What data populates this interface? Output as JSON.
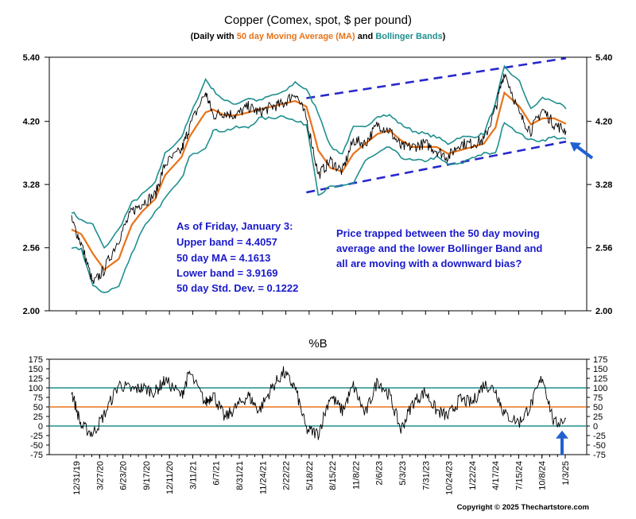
{
  "title": "Copper (Comex, spot, $ per pound)",
  "subtitle": {
    "prefix": "(Daily with ",
    "ma": "50 day Moving Average (MA)",
    "and": " and ",
    "bb": "Bollinger Bands",
    "suffix": ")"
  },
  "copyright": "Copyright © 2025 Thechartstore.com",
  "colors": {
    "price": "#000000",
    "ma": "#e8731a",
    "bands": "#1f8f8f",
    "channel": "#2828cc",
    "arrow": "#2060d0",
    "annotation": "#1a1acc",
    "ref_line_mid": "#e8731a",
    "ref_line_band": "#1f8f8f"
  },
  "chart_data": [
    {
      "type": "line",
      "name": "copper-price-panel",
      "ylim": [
        2.0,
        5.4
      ],
      "yticks": [
        "5.40",
        "4.20",
        "3.28",
        "2.56",
        "2.00"
      ],
      "ytick_values": [
        5.4,
        4.2,
        3.28,
        2.56,
        2.0
      ],
      "y_scale": "log",
      "x": [
        "2019-12-31",
        "2020-02-05",
        "2020-03-19",
        "2020-04-30",
        "2020-06-23",
        "2020-08-10",
        "2020-09-17",
        "2020-11-05",
        "2020-12-11",
        "2021-02-10",
        "2021-03-11",
        "2021-05-10",
        "2021-06-07",
        "2021-07-20",
        "2021-08-31",
        "2021-10-15",
        "2021-11-24",
        "2022-01-10",
        "2022-02-22",
        "2022-04-07",
        "2022-05-18",
        "2022-07-01",
        "2022-08-15",
        "2022-09-28",
        "2022-11-08",
        "2022-12-22",
        "2023-02-06",
        "2023-03-22",
        "2023-05-03",
        "2023-06-15",
        "2023-07-31",
        "2023-09-12",
        "2023-10-24",
        "2023-12-07",
        "2024-01-22",
        "2024-03-05",
        "2024-04-17",
        "2024-05-20",
        "2024-07-15",
        "2024-08-26",
        "2024-10-08",
        "2024-11-20",
        "2025-01-03"
      ],
      "series": [
        {
          "key": "price",
          "values": [
            2.85,
            2.6,
            2.22,
            2.35,
            2.65,
            2.95,
            3.05,
            3.15,
            3.55,
            3.75,
            4.1,
            4.7,
            4.3,
            4.35,
            4.3,
            4.45,
            4.35,
            4.45,
            4.5,
            4.7,
            4.25,
            3.4,
            3.6,
            3.45,
            3.9,
            3.85,
            4.15,
            4.05,
            3.8,
            3.8,
            3.85,
            3.75,
            3.65,
            3.85,
            3.85,
            3.9,
            4.4,
            5.1,
            4.3,
            4.05,
            4.4,
            4.15,
            4.05
          ]
        },
        {
          "key": "ma",
          "values": [
            2.75,
            2.7,
            2.5,
            2.35,
            2.45,
            2.8,
            2.95,
            3.1,
            3.4,
            3.65,
            3.95,
            4.35,
            4.4,
            4.3,
            4.3,
            4.35,
            4.4,
            4.45,
            4.5,
            4.55,
            4.45,
            3.75,
            3.5,
            3.45,
            3.7,
            3.85,
            4.0,
            4.05,
            3.9,
            3.8,
            3.8,
            3.8,
            3.7,
            3.75,
            3.8,
            3.85,
            4.1,
            4.7,
            4.45,
            4.15,
            4.25,
            4.25,
            4.16
          ]
        },
        {
          "key": "upper",
          "values": [
            2.95,
            2.85,
            2.8,
            2.55,
            2.75,
            3.05,
            3.15,
            3.3,
            3.7,
            3.95,
            4.25,
            4.95,
            4.75,
            4.55,
            4.5,
            4.6,
            4.55,
            4.65,
            4.7,
            4.9,
            4.75,
            4.35,
            3.8,
            3.7,
            4.1,
            4.1,
            4.3,
            4.3,
            4.15,
            4.05,
            4.0,
            3.95,
            3.85,
            3.95,
            3.95,
            4.0,
            4.5,
            5.2,
            4.9,
            4.4,
            4.6,
            4.55,
            4.41
          ]
        },
        {
          "key": "lower",
          "values": [
            2.55,
            2.55,
            2.2,
            2.15,
            2.2,
            2.5,
            2.75,
            2.95,
            3.1,
            3.35,
            3.65,
            3.8,
            4.05,
            4.05,
            4.1,
            4.1,
            4.25,
            4.25,
            4.3,
            4.2,
            4.15,
            3.15,
            3.25,
            3.25,
            3.3,
            3.6,
            3.7,
            3.8,
            3.65,
            3.6,
            3.6,
            3.65,
            3.55,
            3.55,
            3.65,
            3.7,
            3.7,
            4.2,
            4.0,
            3.9,
            3.9,
            3.95,
            3.92
          ]
        }
      ],
      "channel": {
        "upper": [
          [
            "2022-05-18",
            4.6
          ],
          [
            "2025-01-03",
            5.38
          ]
        ],
        "lower": [
          [
            "2022-05-18",
            3.18
          ],
          [
            "2025-01-03",
            3.88
          ]
        ]
      },
      "arrow_target": [
        "2025-01-03",
        3.92
      ]
    },
    {
      "type": "line",
      "name": "percent-b-panel",
      "title": "%B",
      "ylim": [
        -75,
        175
      ],
      "yticks": [
        "175",
        "150",
        "125",
        "100",
        "75",
        "50",
        "25",
        "0",
        "-25",
        "-50",
        "-75"
      ],
      "ytick_values": [
        175,
        150,
        125,
        100,
        75,
        50,
        25,
        0,
        -25,
        -50,
        -75
      ],
      "ref_lines": [
        100,
        50,
        0
      ],
      "x": [
        "2019-12-31",
        "2020-02-05",
        "2020-03-19",
        "2020-04-30",
        "2020-06-23",
        "2020-08-10",
        "2020-09-17",
        "2020-11-05",
        "2020-12-11",
        "2021-02-10",
        "2021-03-11",
        "2021-05-10",
        "2021-06-07",
        "2021-07-20",
        "2021-08-31",
        "2021-10-15",
        "2021-11-24",
        "2022-01-10",
        "2022-02-22",
        "2022-04-07",
        "2022-05-18",
        "2022-07-01",
        "2022-08-15",
        "2022-09-28",
        "2022-11-08",
        "2022-12-22",
        "2023-02-06",
        "2023-03-22",
        "2023-05-03",
        "2023-06-15",
        "2023-07-31",
        "2023-09-12",
        "2023-10-24",
        "2023-12-07",
        "2024-01-22",
        "2024-03-05",
        "2024-04-17",
        "2024-05-20",
        "2024-07-15",
        "2024-08-26",
        "2024-10-08",
        "2024-11-20",
        "2025-01-03"
      ],
      "values": [
        90,
        0,
        -20,
        30,
        110,
        95,
        100,
        90,
        120,
        80,
        140,
        60,
        85,
        20,
        50,
        80,
        40,
        100,
        140,
        100,
        -10,
        -20,
        80,
        40,
        105,
        30,
        120,
        80,
        -10,
        60,
        90,
        40,
        25,
        70,
        60,
        110,
        95,
        30,
        10,
        55,
        130,
        5,
        20
      ],
      "arrow_target": [
        "2025-01-03",
        -12
      ]
    }
  ],
  "x_axis_labels": [
    "12/31/19",
    "3/27/20",
    "6/23/20",
    "9/17/20",
    "12/11/20",
    "3/11/21",
    "6/7/21",
    "8/31/21",
    "11/24/21",
    "2/22/22",
    "5/18/22",
    "8/15/22",
    "11/8/22",
    "2/6/23",
    "5/3/23",
    "7/31/23",
    "10/24/23",
    "1/22/24",
    "4/17/24",
    "7/15/24",
    "10/8/24",
    "1/3/25"
  ],
  "annotations": {
    "stats": [
      "As of Friday, January 3:",
      "Upper band = 4.4057",
      "50 day MA = 4.1613",
      "Lower band = 3.9169",
      "50 day Std. Dev. = 0.1222"
    ],
    "comment": [
      "Price trapped between the 50 day moving",
      "average and the lower Bollinger Band and",
      "all are moving with a downward bias?"
    ]
  }
}
